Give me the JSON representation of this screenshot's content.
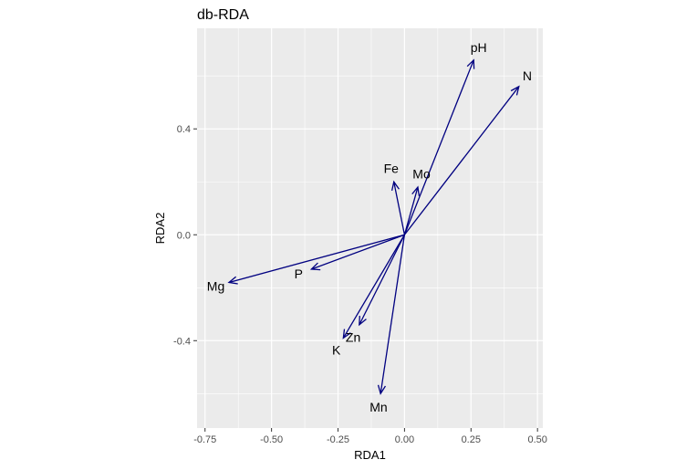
{
  "chart_data": {
    "type": "biplot-arrows",
    "title": "db-RDA",
    "xlabel": "RDA1",
    "ylabel": "RDA2",
    "xlim": [
      -0.78,
      0.52
    ],
    "ylim": [
      -0.73,
      0.78
    ],
    "x_ticks": [
      -0.75,
      -0.5,
      -0.25,
      0.0,
      0.25,
      0.5
    ],
    "x_tick_labels": [
      "-0.75",
      "-0.50",
      "-0.25",
      "0.00",
      "0.25",
      "0.50"
    ],
    "y_ticks": [
      -0.4,
      0.0,
      0.4
    ],
    "y_tick_labels": [
      "-0.4",
      "0.0",
      "0.4"
    ],
    "grid": true,
    "arrow_color": "#000080",
    "panel_color": "#EBEBEB",
    "vectors": [
      {
        "label": "pH",
        "x": 0.26,
        "y": 0.66
      },
      {
        "label": "N",
        "x": 0.43,
        "y": 0.56
      },
      {
        "label": "Fe",
        "x": -0.04,
        "y": 0.2
      },
      {
        "label": "Mo",
        "x": 0.05,
        "y": 0.18
      },
      {
        "label": "P",
        "x": -0.35,
        "y": -0.13
      },
      {
        "label": "Mg",
        "x": -0.66,
        "y": -0.18
      },
      {
        "label": "Zn",
        "x": -0.17,
        "y": -0.34
      },
      {
        "label": "K",
        "x": -0.23,
        "y": -0.39
      },
      {
        "label": "Mn",
        "x": -0.09,
        "y": -0.6
      }
    ]
  }
}
